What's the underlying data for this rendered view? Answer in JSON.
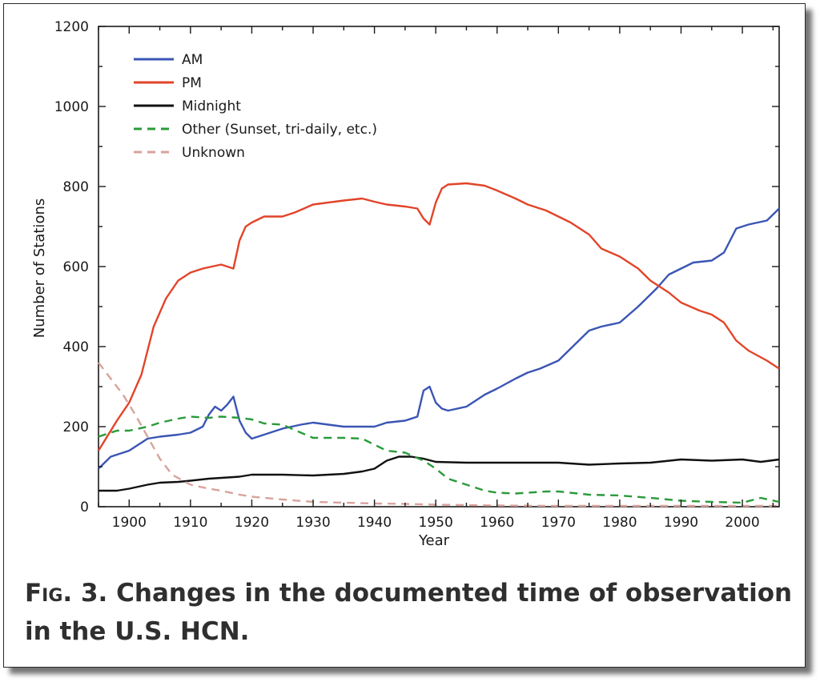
{
  "figure": {
    "caption_label": "Fig. 3.",
    "caption_text": "Changes in the documented time of observation in the U.S. HCN."
  },
  "chart_data": {
    "type": "line",
    "xlabel": "Year",
    "ylabel": "Number of Stations",
    "xlim": [
      1895,
      2006
    ],
    "ylim": [
      0,
      1200
    ],
    "xticks": [
      1900,
      1910,
      1920,
      1930,
      1940,
      1950,
      1960,
      1970,
      1980,
      1990,
      2000
    ],
    "yticks": [
      0,
      200,
      400,
      600,
      800,
      1000,
      1200
    ],
    "grid": false,
    "legend_position": "top-left",
    "series": [
      {
        "name": "AM",
        "color": "#3a55b4",
        "dash": "solid",
        "x": [
          1895,
          1897,
          1900,
          1903,
          1905,
          1908,
          1910,
          1912,
          1913,
          1914,
          1915,
          1916,
          1917,
          1918,
          1919,
          1920,
          1922,
          1925,
          1928,
          1930,
          1935,
          1940,
          1942,
          1945,
          1947,
          1948,
          1949,
          1950,
          1951,
          1952,
          1955,
          1958,
          1960,
          1963,
          1965,
          1967,
          1970,
          1972,
          1975,
          1977,
          1980,
          1983,
          1985,
          1986,
          1988,
          1990,
          1992,
          1995,
          1997,
          1999,
          2001,
          2004,
          2006
        ],
        "y": [
          95,
          125,
          140,
          170,
          175,
          180,
          185,
          200,
          230,
          250,
          240,
          255,
          275,
          215,
          185,
          170,
          180,
          195,
          205,
          210,
          200,
          200,
          210,
          215,
          225,
          290,
          300,
          260,
          245,
          240,
          250,
          280,
          295,
          320,
          335,
          345,
          365,
          395,
          440,
          450,
          460,
          500,
          530,
          545,
          580,
          595,
          610,
          615,
          635,
          695,
          705,
          715,
          745
        ]
      },
      {
        "name": "PM",
        "color": "#e2442a",
        "dash": "solid",
        "x": [
          1895,
          1898,
          1900,
          1902,
          1904,
          1906,
          1908,
          1910,
          1912,
          1915,
          1917,
          1918,
          1919,
          1920,
          1922,
          1925,
          1927,
          1930,
          1935,
          1938,
          1940,
          1942,
          1945,
          1947,
          1948,
          1949,
          1950,
          1951,
          1952,
          1955,
          1958,
          1960,
          1963,
          1965,
          1968,
          1970,
          1972,
          1975,
          1977,
          1980,
          1983,
          1985,
          1988,
          1990,
          1993,
          1995,
          1997,
          1999,
          2001,
          2004,
          2006
        ],
        "y": [
          140,
          215,
          260,
          330,
          450,
          520,
          565,
          585,
          595,
          605,
          595,
          665,
          700,
          710,
          725,
          725,
          735,
          755,
          765,
          770,
          762,
          755,
          750,
          745,
          720,
          705,
          760,
          795,
          805,
          808,
          802,
          790,
          770,
          755,
          740,
          725,
          710,
          680,
          645,
          625,
          595,
          565,
          535,
          510,
          490,
          480,
          460,
          415,
          390,
          365,
          345
        ]
      },
      {
        "name": "Midnight",
        "color": "#111111",
        "dash": "solid",
        "x": [
          1895,
          1898,
          1900,
          1903,
          1905,
          1908,
          1910,
          1913,
          1915,
          1918,
          1920,
          1925,
          1930,
          1935,
          1938,
          1940,
          1942,
          1944,
          1946,
          1948,
          1950,
          1955,
          1960,
          1965,
          1970,
          1975,
          1980,
          1985,
          1990,
          1995,
          2000,
          2003,
          2006
        ],
        "y": [
          40,
          40,
          45,
          55,
          60,
          62,
          65,
          70,
          72,
          75,
          80,
          80,
          78,
          82,
          88,
          95,
          115,
          125,
          125,
          120,
          112,
          110,
          110,
          110,
          110,
          105,
          108,
          110,
          118,
          115,
          118,
          112,
          118
        ]
      },
      {
        "name": "Other (Sunset, tri-daily, etc.)",
        "color": "#2a9a3a",
        "dash": "dashed",
        "x": [
          1895,
          1898,
          1900,
          1903,
          1905,
          1908,
          1910,
          1913,
          1915,
          1918,
          1920,
          1922,
          1925,
          1928,
          1930,
          1935,
          1938,
          1940,
          1942,
          1945,
          1948,
          1950,
          1952,
          1955,
          1958,
          1960,
          1963,
          1965,
          1968,
          1970,
          1975,
          1980,
          1985,
          1990,
          1995,
          2000,
          2003,
          2006
        ],
        "y": [
          175,
          190,
          190,
          200,
          210,
          220,
          225,
          222,
          225,
          222,
          218,
          208,
          205,
          185,
          172,
          172,
          170,
          155,
          140,
          135,
          115,
          95,
          70,
          55,
          40,
          35,
          33,
          35,
          38,
          38,
          30,
          28,
          22,
          15,
          12,
          10,
          22,
          12
        ]
      },
      {
        "name": "Unknown",
        "color": "#d8a39c",
        "dash": "dashed",
        "x": [
          1895,
          1897,
          1899,
          1901,
          1903,
          1905,
          1907,
          1910,
          1913,
          1915,
          1918,
          1920,
          1925,
          1930,
          1935,
          1940,
          1945,
          1950,
          1955,
          1960,
          1970,
          1980,
          1990,
          2000,
          2006
        ],
        "y": [
          360,
          320,
          280,
          230,
          175,
          120,
          80,
          55,
          45,
          40,
          30,
          25,
          18,
          12,
          10,
          8,
          7,
          5,
          4,
          3,
          2,
          2,
          2,
          2,
          2
        ]
      }
    ]
  }
}
